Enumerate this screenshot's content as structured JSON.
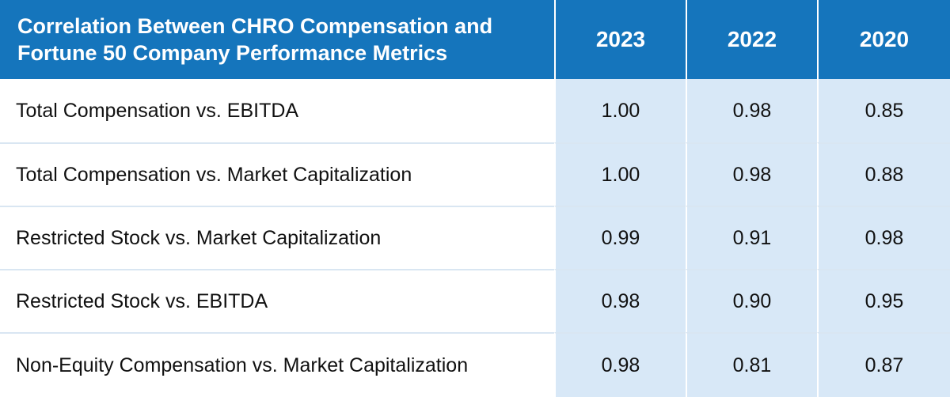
{
  "colors": {
    "header_bg": "#1575bc",
    "header_text": "#ffffff",
    "value_cell_bg": "#d8e8f7",
    "label_cell_bg": "#ffffff",
    "text": "#111111"
  },
  "chart_data": {
    "type": "table",
    "title": "Correlation Between CHRO Compensation and Fortune 50 Company Performance Metrics",
    "columns": [
      "2023",
      "2022",
      "2020"
    ],
    "rows": [
      {
        "label": "Total Compensation vs. EBITDA",
        "values": [
          "1.00",
          "0.98",
          "0.85"
        ]
      },
      {
        "label": "Total Compensation vs. Market Capitalization",
        "values": [
          "1.00",
          "0.98",
          "0.88"
        ]
      },
      {
        "label": "Restricted Stock vs. Market Capitalization",
        "values": [
          "0.99",
          "0.91",
          "0.98"
        ]
      },
      {
        "label": "Restricted Stock vs. EBITDA",
        "values": [
          "0.98",
          "0.90",
          "0.95"
        ]
      },
      {
        "label": "Non-Equity Compensation vs. Market Capitalization",
        "values": [
          "0.98",
          "0.81",
          "0.87"
        ]
      }
    ]
  }
}
